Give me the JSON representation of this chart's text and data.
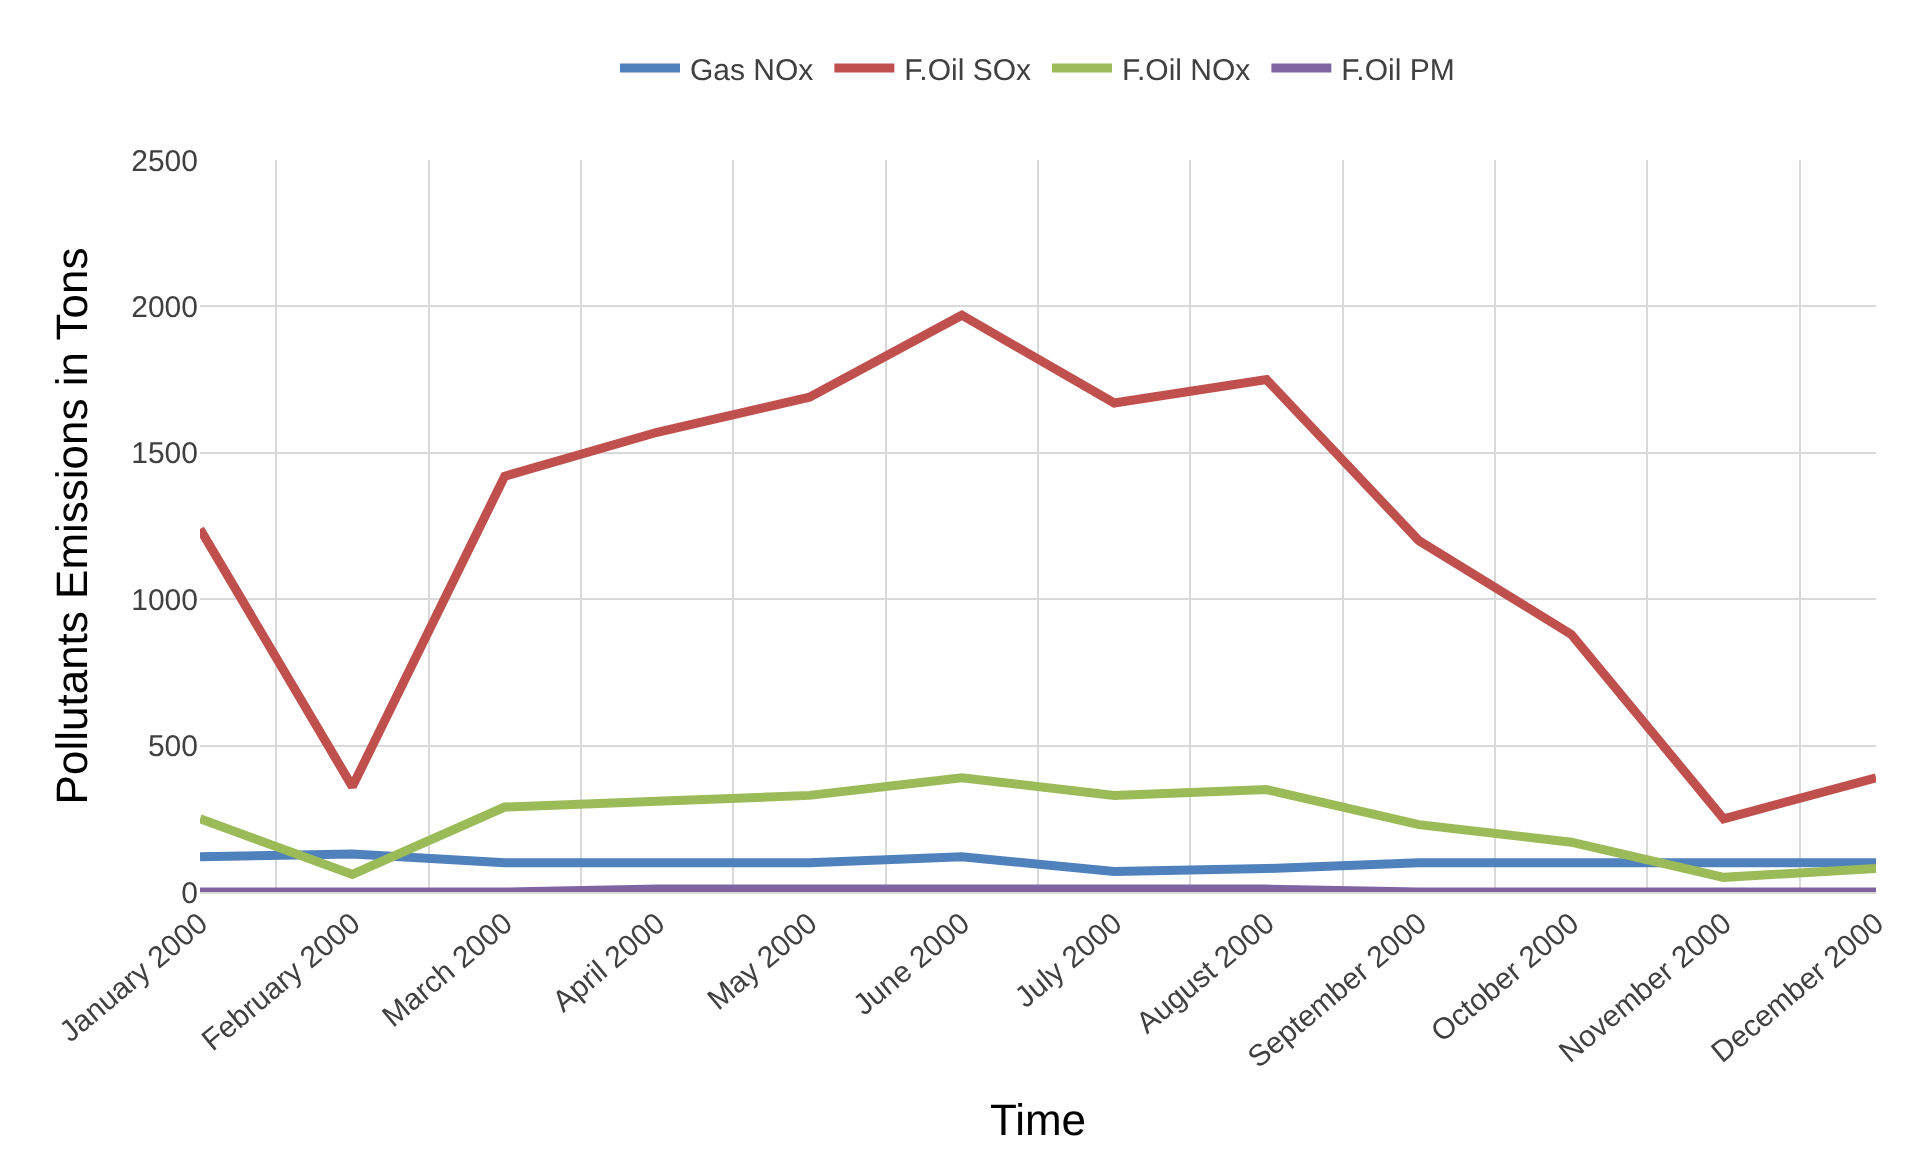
{
  "chart_data": {
    "type": "line",
    "xlabel": "Time",
    "ylabel": "Pollutants Emissions in Tons",
    "categories": [
      "January 2000",
      "February 2000",
      "March 2000",
      "April 2000",
      "May 2000",
      "June 2000",
      "July 2000",
      "August 2000",
      "September 2000",
      "October 2000",
      "November 2000",
      "December 2000"
    ],
    "series": [
      {
        "name": "Gas NOx",
        "color": "#4f81bd",
        "values": [
          120,
          130,
          100,
          100,
          100,
          120,
          70,
          80,
          100,
          100,
          100,
          100
        ]
      },
      {
        "name": "F.Oil SOx",
        "color": "#c0504d",
        "values": [
          1240,
          360,
          1420,
          1570,
          1690,
          1970,
          1670,
          1750,
          1200,
          880,
          250,
          390
        ]
      },
      {
        "name": "F.Oil NOx",
        "color": "#9bbb59",
        "values": [
          250,
          60,
          290,
          310,
          330,
          390,
          330,
          350,
          230,
          170,
          50,
          80
        ]
      },
      {
        "name": "F.Oil PM",
        "color": "#8064a2",
        "values": [
          0,
          0,
          0,
          10,
          10,
          10,
          10,
          10,
          0,
          0,
          0,
          0
        ]
      }
    ],
    "ylim": [
      0,
      2500
    ],
    "yticks": [
      0,
      500,
      1000,
      1500,
      2000,
      2500
    ],
    "grid": true,
    "legend": "top",
    "marker": "none",
    "line_style": "solid"
  }
}
